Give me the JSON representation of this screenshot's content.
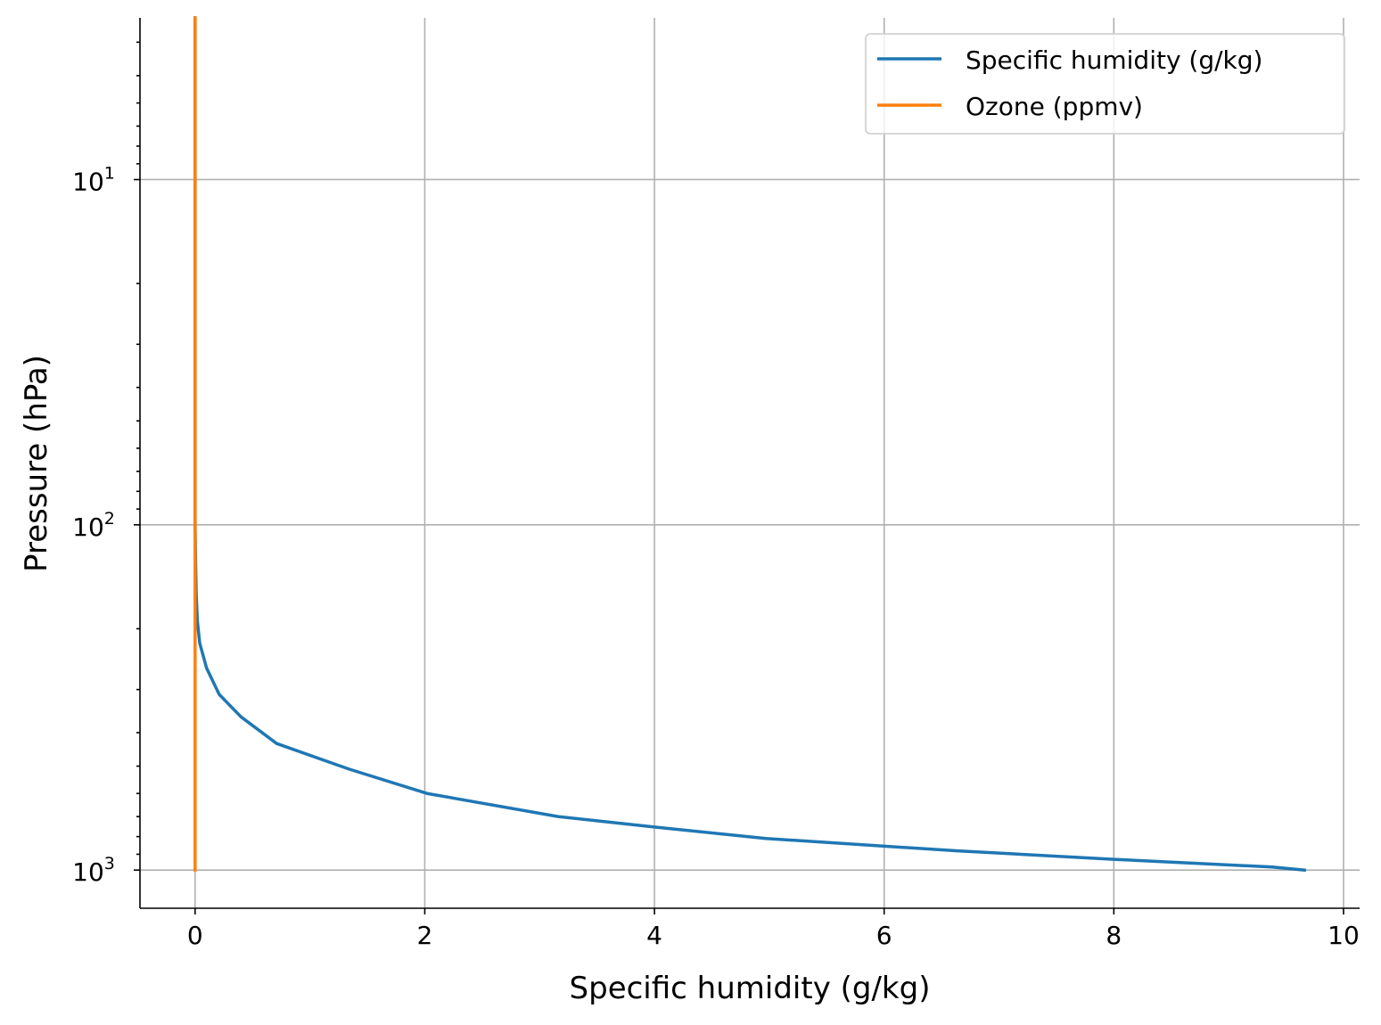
{
  "chart_data": {
    "type": "line",
    "title": "",
    "xlabel": "Specific humidity (g/kg)",
    "ylabel": "Pressure (hPa)",
    "xlim": [
      -0.48,
      10.14
    ],
    "ylim": [
      1290,
      3.4
    ],
    "yscale": "log",
    "y_inverted": true,
    "grid": true,
    "legend_position": "upper-right",
    "x_ticks": [
      {
        "value": 0,
        "label": "0"
      },
      {
        "value": 2,
        "label": "2"
      },
      {
        "value": 4,
        "label": "4"
      },
      {
        "value": 6,
        "label": "6"
      },
      {
        "value": 8,
        "label": "8"
      },
      {
        "value": 10,
        "label": "10"
      }
    ],
    "y_ticks": [
      {
        "value": 10,
        "base": "10",
        "exp": "1"
      },
      {
        "value": 100,
        "base": "10",
        "exp": "2"
      },
      {
        "value": 1000,
        "base": "10",
        "exp": "3"
      }
    ],
    "series": [
      {
        "name": "Specific humidity (g/kg)",
        "color": "#1f77b4",
        "x": [
          0.0,
          0.0,
          0.005,
          0.01,
          0.02,
          0.04,
          0.1,
          0.21,
          0.4,
          0.71,
          1.34,
          2.02,
          3.16,
          3.99,
          4.97,
          6.64,
          7.98,
          9.38,
          9.66
        ],
        "y": [
          3.4,
          100,
          130,
          160,
          190,
          220,
          260,
          310,
          360,
          430,
          510,
          600,
          700,
          750,
          810,
          880,
          930,
          980,
          1000
        ]
      },
      {
        "name": "Ozone (ppmv)",
        "color": "#ff7f0e",
        "x": [
          0.0,
          0.0
        ],
        "y": [
          3.4,
          1000
        ]
      }
    ]
  }
}
